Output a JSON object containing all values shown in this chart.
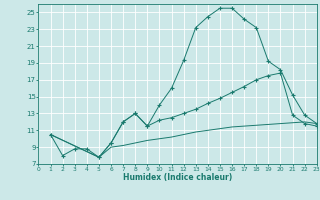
{
  "xlabel": "Humidex (Indice chaleur)",
  "ylabel": "",
  "bg_color": "#cce8e8",
  "grid_color": "#ffffff",
  "line_color": "#1a7a6e",
  "xlim": [
    0,
    23
  ],
  "ylim": [
    7,
    26
  ],
  "xticks": [
    0,
    1,
    2,
    3,
    4,
    5,
    6,
    7,
    8,
    9,
    10,
    11,
    12,
    13,
    14,
    15,
    16,
    17,
    18,
    19,
    20,
    21,
    22,
    23
  ],
  "yticks": [
    7,
    9,
    11,
    13,
    15,
    17,
    19,
    21,
    23,
    25
  ],
  "line1_x": [
    1,
    2,
    3,
    4,
    5,
    6,
    7,
    8,
    9,
    10,
    11,
    12,
    13,
    14,
    15,
    16,
    17,
    18,
    19,
    20,
    21,
    22,
    23
  ],
  "line1_y": [
    10.5,
    8.0,
    8.8,
    8.8,
    7.8,
    9.5,
    12.0,
    13.0,
    11.5,
    14.0,
    16.0,
    19.3,
    23.2,
    24.5,
    25.5,
    25.5,
    24.2,
    23.2,
    19.2,
    18.2,
    15.2,
    12.8,
    11.8
  ],
  "line2_x": [
    1,
    5,
    6,
    7,
    8,
    9,
    10,
    11,
    12,
    13,
    14,
    15,
    16,
    17,
    18,
    19,
    20,
    21,
    22,
    23
  ],
  "line2_y": [
    10.5,
    7.8,
    9.5,
    12.0,
    13.0,
    11.5,
    12.2,
    12.5,
    13.0,
    13.5,
    14.2,
    14.8,
    15.5,
    16.2,
    17.0,
    17.5,
    17.8,
    12.8,
    11.8,
    11.5
  ],
  "line3_x": [
    1,
    5,
    6,
    7,
    8,
    9,
    10,
    11,
    12,
    13,
    14,
    15,
    16,
    17,
    18,
    19,
    20,
    21,
    22,
    23
  ],
  "line3_y": [
    10.5,
    7.8,
    9.0,
    9.2,
    9.5,
    9.8,
    10.0,
    10.2,
    10.5,
    10.8,
    11.0,
    11.2,
    11.4,
    11.5,
    11.6,
    11.7,
    11.8,
    11.9,
    12.0,
    11.8
  ]
}
